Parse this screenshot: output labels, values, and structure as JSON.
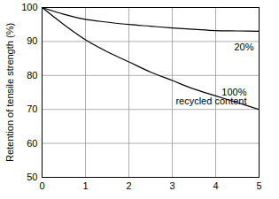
{
  "chart_data": {
    "type": "line",
    "ylabel": "Retention of tensile strength (%)",
    "xlim": [
      0,
      5
    ],
    "xticks": [
      0,
      1,
      2,
      3,
      4,
      5
    ],
    "ylim": [
      50,
      100
    ],
    "yticks": [
      50,
      60,
      70,
      80,
      90,
      100
    ],
    "grid": true,
    "series": [
      {
        "name": "20%",
        "color": "#000000",
        "x": [
          0,
          0.5,
          1,
          1.5,
          2,
          2.5,
          3,
          3.5,
          4,
          4.5,
          5
        ],
        "values": [
          100,
          98,
          96.5,
          95.7,
          95,
          94.5,
          94,
          93.6,
          93.2,
          93.1,
          93
        ]
      },
      {
        "name": "100%\nrecycled content",
        "color": "#000000",
        "x": [
          0,
          0.5,
          1,
          1.5,
          2,
          2.5,
          3,
          3.5,
          4,
          4.5,
          5
        ],
        "values": [
          100,
          95,
          90.5,
          87,
          84,
          81,
          78.5,
          76,
          74,
          72,
          70
        ]
      }
    ]
  }
}
